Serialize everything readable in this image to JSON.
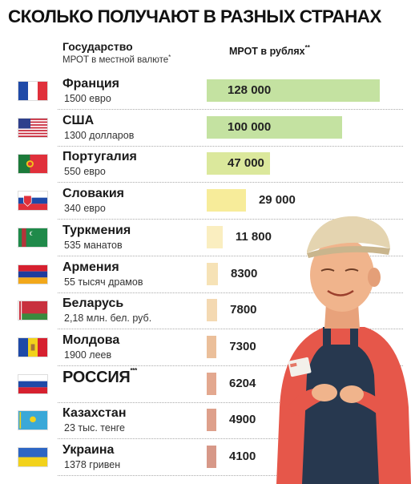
{
  "title": "СКОЛЬКО ПОЛУЧАЮТ В РАЗНЫХ СТРАНАХ",
  "headers": {
    "country": "Государство",
    "country_sub": "МРОТ в местной валюте",
    "country_sub_mark": "*",
    "mrot": "МРОТ в рублях",
    "mrot_mark": "**"
  },
  "colors": {
    "bar_high": "#c4e2a1",
    "bar_mid": "#dbe89c",
    "bar_yellow": "#f7ec9a",
    "bar_light": "#faeec0",
    "bar_peach": "#f4d9b2",
    "bar_orange": "#ebbf9a",
    "bar_salmon": "#e3a88f",
    "bar_red": "#d79888"
  },
  "chart_data": {
    "type": "bar",
    "orientation": "horizontal",
    "xlabel": "МРОТ в рублях",
    "categories": [
      "Франция",
      "США",
      "Португалия",
      "Словакия",
      "Туркмения",
      "Армения",
      "Беларусь",
      "Молдова",
      "РОССИЯ",
      "Казахстан",
      "Украина"
    ],
    "values": [
      128000,
      100000,
      47000,
      29000,
      11800,
      8300,
      7800,
      7300,
      6204,
      4900,
      4100
    ],
    "value_labels": [
      "128 000",
      "100 000",
      "47 000",
      "29 000",
      "11 800",
      "8300",
      "7800",
      "7300",
      "6204",
      "4900",
      "4100"
    ],
    "local": [
      "1500 евро",
      "1300 долларов",
      "550 евро",
      "340 евро",
      "535 манатов",
      "55 тысяч драмов",
      "2,18 млн. бел. руб.",
      "1900 леев",
      "",
      "23 тыс. тенге",
      "1378 гривен"
    ],
    "flags": [
      "france-flag",
      "usa-flag",
      "portugal-flag",
      "slovakia-flag",
      "turkmenistan-flag",
      "armenia-flag",
      "belarus-flag",
      "moldova-flag",
      "russia-flag",
      "kazakhstan-flag",
      "ukraine-flag"
    ],
    "bar_colors": [
      "#c4e2a1",
      "#c4e2a1",
      "#dbe89c",
      "#f7ec9a",
      "#faeec0",
      "#f6e2b6",
      "#f4d9b2",
      "#ebbf9a",
      "#e3a88f",
      "#dea08b",
      "#d79888"
    ],
    "russia_mark": "***"
  }
}
